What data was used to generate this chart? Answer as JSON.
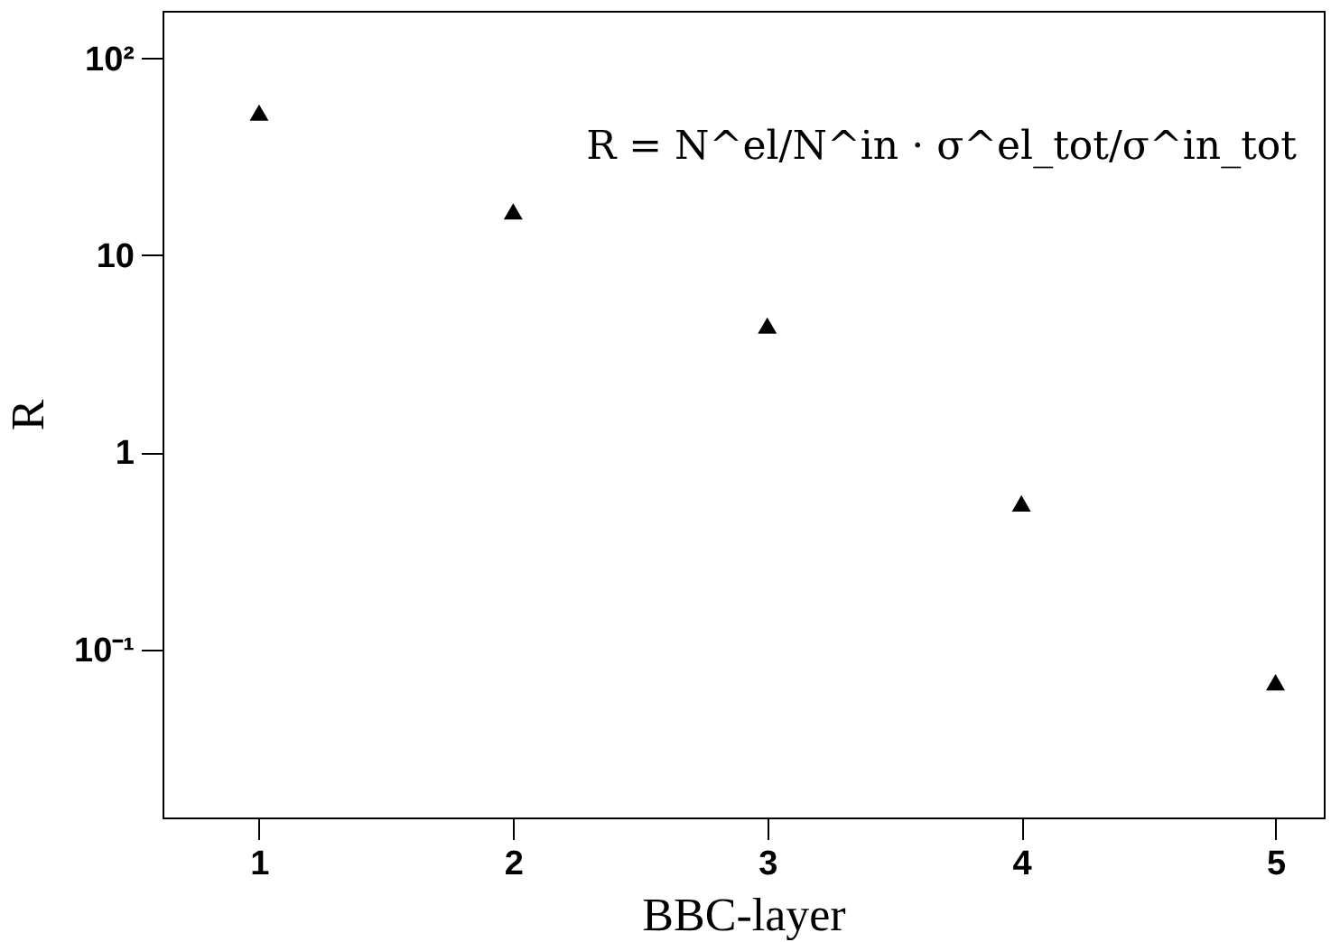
{
  "chart_data": {
    "type": "scatter",
    "xlabel": "BBC-layer",
    "ylabel": "R",
    "x": [
      1,
      2,
      3,
      4,
      5
    ],
    "series": [
      {
        "color": "#000000",
        "values": [
          53,
          16.7,
          4.4,
          0.55,
          0.068
        ]
      }
    ],
    "marker": "triangle",
    "log": "y",
    "grid": false,
    "xlim": [
      0.62,
      5.19
    ],
    "xticks": [
      1,
      2,
      3,
      4,
      5
    ],
    "ylim": [
      0.014,
      174
    ],
    "yticks": [
      {
        "value": 0.1,
        "label": "10⁻¹"
      },
      1,
      10,
      {
        "value": 100,
        "label": "10²"
      }
    ],
    "annotations": [
      "R = N^el/N^in · σ^el_tot/σ^in_tot"
    ]
  }
}
